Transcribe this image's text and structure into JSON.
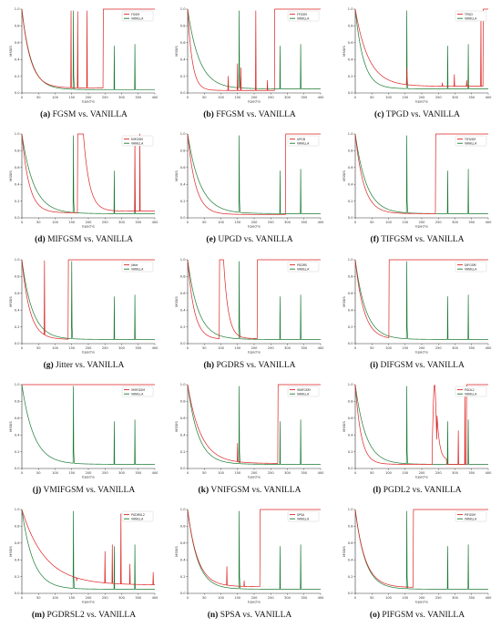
{
  "colors": {
    "attack": "#dd2222",
    "vanilla": "#1a7a33",
    "axis": "#333333"
  },
  "axes": {
    "xlabel": "Epochs",
    "ylabel": "MSSIS",
    "xlim": [
      0,
      400
    ],
    "ylim": [
      0,
      1.0
    ],
    "xticks": [
      "0",
      "50",
      "100",
      "150",
      "200",
      "250",
      "300",
      "350",
      "400"
    ],
    "yticks": [
      "0.0",
      "0.2",
      "0.4",
      "0.6",
      "0.8",
      "1.0"
    ]
  },
  "chart_data": [
    {
      "type": "line",
      "caption_letter": "(a)",
      "caption_text": "FGSM vs. VANILLA",
      "series": [
        {
          "name": "FGSM",
          "color": "#dd2222",
          "kind": "decay",
          "tau": 26,
          "floor": 0.06,
          "spikes": [
            [
              148,
              0.98
            ],
            [
              168,
              0.97
            ],
            [
              196,
              0.98
            ]
          ],
          "switch_at": 245
        },
        {
          "name": "VANILLA",
          "color": "#1a7a33",
          "kind": "decay",
          "tau": 28,
          "floor": 0.04,
          "spikes": [
            [
              155,
              0.98
            ],
            [
              278,
              0.56
            ],
            [
              340,
              0.58
            ]
          ]
        }
      ]
    },
    {
      "type": "line",
      "caption_letter": "(b)",
      "caption_text": "FFGSM vs. VANILLA",
      "series": [
        {
          "name": "FFGSM",
          "color": "#dd2222",
          "kind": "decay",
          "tau": 14,
          "floor": 0.03,
          "spikes": [
            [
              122,
              0.2
            ],
            [
              150,
              0.35
            ],
            [
              160,
              0.3
            ],
            [
              205,
              0.98
            ],
            [
              240,
              0.15
            ]
          ],
          "switch_at": 262
        },
        {
          "name": "VANILLA",
          "color": "#1a7a33",
          "kind": "decay",
          "tau": 35,
          "floor": 0.05,
          "spikes": [
            [
              155,
              0.98
            ],
            [
              278,
              0.56
            ],
            [
              340,
              0.58
            ]
          ]
        }
      ]
    },
    {
      "type": "line",
      "caption_letter": "(c)",
      "caption_text": "TPGD vs. VANILLA",
      "series": [
        {
          "name": "TPGD",
          "color": "#dd2222",
          "kind": "decay",
          "tau": 40,
          "floor": 0.08,
          "spikes": [
            [
              155,
              0.3
            ],
            [
              262,
              0.12
            ],
            [
              298,
              0.22
            ],
            [
              335,
              0.15
            ],
            [
              378,
              0.95
            ]
          ],
          "switch_at": 385
        },
        {
          "name": "VANILLA",
          "color": "#1a7a33",
          "kind": "decay",
          "tau": 25,
          "floor": 0.05,
          "spikes": [
            [
              155,
              0.98
            ],
            [
              278,
              0.56
            ],
            [
              340,
              0.58
            ]
          ]
        }
      ]
    },
    {
      "type": "line",
      "caption_letter": "(d)",
      "caption_text": "MIFGSM vs. VANILLA",
      "series": [
        {
          "name": "MIFGSM",
          "color": "#dd2222",
          "kind": "mifgsm"
        },
        {
          "name": "VANILLA",
          "color": "#1a7a33",
          "kind": "decay",
          "tau": 36,
          "floor": 0.05,
          "spikes": [
            [
              155,
              0.98
            ],
            [
              278,
              0.56
            ],
            [
              340,
              0.58
            ]
          ]
        }
      ]
    },
    {
      "type": "line",
      "caption_letter": "(e)",
      "caption_text": "UPGD vs. VANILLA",
      "series": [
        {
          "name": "UPGD",
          "color": "#dd2222",
          "kind": "decay",
          "tau": 24,
          "floor": 0.04,
          "spikes": [],
          "switch_at": 295
        },
        {
          "name": "VANILLA",
          "color": "#1a7a33",
          "kind": "decay",
          "tau": 38,
          "floor": 0.05,
          "spikes": [
            [
              155,
              0.98
            ],
            [
              278,
              0.56
            ],
            [
              340,
              0.58
            ]
          ]
        }
      ]
    },
    {
      "type": "line",
      "caption_letter": "(f)",
      "caption_text": "TIFGSM vs. VANILLA",
      "series": [
        {
          "name": "TIFGSM",
          "color": "#dd2222",
          "kind": "decay",
          "tau": 26,
          "floor": 0.05,
          "spikes": [],
          "switch_at": 242
        },
        {
          "name": "VANILLA",
          "color": "#1a7a33",
          "kind": "decay",
          "tau": 34,
          "floor": 0.05,
          "spikes": [
            [
              155,
              0.98
            ],
            [
              278,
              0.56
            ],
            [
              340,
              0.58
            ]
          ]
        }
      ]
    },
    {
      "type": "line",
      "caption_letter": "(g)",
      "caption_text": "Jitter vs. VANILLA",
      "series": [
        {
          "name": "Jitter",
          "color": "#dd2222",
          "kind": "decay",
          "tau": 24,
          "floor": 0.05,
          "spikes": [
            [
              68,
              0.99
            ]
          ],
          "switch_at": 140
        },
        {
          "name": "VANILLA",
          "color": "#1a7a33",
          "kind": "decay",
          "tau": 32,
          "floor": 0.05,
          "spikes": [
            [
              150,
              0.98
            ],
            [
              278,
              0.56
            ],
            [
              340,
              0.58
            ]
          ]
        }
      ]
    },
    {
      "type": "line",
      "caption_letter": "(h)",
      "caption_text": "PGDRS vs. VANILLA",
      "series": [
        {
          "name": "PGDRS",
          "color": "#dd2222",
          "kind": "pgdrs"
        },
        {
          "name": "VANILLA",
          "color": "#1a7a33",
          "kind": "decay",
          "tau": 32,
          "floor": 0.05,
          "spikes": [
            [
              155,
              0.98
            ],
            [
              278,
              0.56
            ],
            [
              340,
              0.58
            ]
          ]
        }
      ]
    },
    {
      "type": "line",
      "caption_letter": "(i)",
      "caption_text": "DIFGSM vs. VANILLA",
      "series": [
        {
          "name": "DIFGSM",
          "color": "#dd2222",
          "kind": "decay",
          "tau": 26,
          "floor": 0.05,
          "spikes": [],
          "switch_at": 102
        },
        {
          "name": "VANILLA",
          "color": "#1a7a33",
          "kind": "decay",
          "tau": 32,
          "floor": 0.05,
          "spikes": [
            [
              155,
              0.98
            ],
            [
              278,
              0.56
            ],
            [
              340,
              0.58
            ]
          ]
        }
      ]
    },
    {
      "type": "line",
      "caption_letter": "(j)",
      "caption_text": "VMIFGSM vs. VANILLA",
      "series": [
        {
          "name": "VMIFGSM",
          "color": "#dd2222",
          "kind": "flat",
          "value": 1.0
        },
        {
          "name": "VANILLA",
          "color": "#1a7a33",
          "kind": "decay",
          "tau": 36,
          "floor": 0.05,
          "spikes": [
            [
              155,
              0.98
            ],
            [
              278,
              0.56
            ],
            [
              340,
              0.58
            ]
          ]
        }
      ]
    },
    {
      "type": "line",
      "caption_letter": "(k)",
      "caption_text": "VNIFGSM vs. VANILLA",
      "series": [
        {
          "name": "VNIFGSM",
          "color": "#dd2222",
          "kind": "decay",
          "tau": 40,
          "floor": 0.06,
          "spikes": [
            [
              150,
              0.3
            ]
          ],
          "switch_at": 272
        },
        {
          "name": "VANILLA",
          "color": "#1a7a33",
          "kind": "decay",
          "tau": 32,
          "floor": 0.05,
          "spikes": [
            [
              155,
              0.98
            ],
            [
              278,
              0.56
            ],
            [
              340,
              0.58
            ]
          ]
        }
      ]
    },
    {
      "type": "line",
      "caption_letter": "(l)",
      "caption_text": "PGDL2 vs. VANILLA",
      "series": [
        {
          "name": "PGDL2",
          "color": "#dd2222",
          "kind": "pgdl2"
        },
        {
          "name": "VANILLA",
          "color": "#1a7a33",
          "kind": "decay",
          "tau": 32,
          "floor": 0.05,
          "spikes": [
            [
              155,
              0.98
            ],
            [
              278,
              0.56
            ],
            [
              340,
              0.58
            ]
          ]
        }
      ]
    },
    {
      "type": "line",
      "caption_letter": "(m)",
      "caption_text": "PGDRSL2 vs. VANILLA",
      "series": [
        {
          "name": "PGDRSL2",
          "color": "#dd2222",
          "kind": "decay",
          "tau": 70,
          "floor": 0.1,
          "spikes": [
            [
              165,
              0.15
            ],
            [
              250,
              0.5
            ],
            [
              272,
              0.58
            ],
            [
              298,
              0.95
            ],
            [
              325,
              0.35
            ],
            [
              395,
              0.25
            ]
          ]
        },
        {
          "name": "VANILLA",
          "color": "#1a7a33",
          "kind": "decay",
          "tau": 34,
          "floor": 0.05,
          "spikes": [
            [
              155,
              0.98
            ],
            [
              278,
              0.56
            ],
            [
              340,
              0.58
            ]
          ]
        }
      ]
    },
    {
      "type": "line",
      "caption_letter": "(n)",
      "caption_text": "SPSA vs. VANILLA",
      "series": [
        {
          "name": "SPSA",
          "color": "#dd2222",
          "kind": "decay",
          "tau": 30,
          "floor": 0.08,
          "spikes": [
            [
              118,
              0.32
            ],
            [
              170,
              0.15
            ]
          ],
          "switch_at": 218
        },
        {
          "name": "VANILLA",
          "color": "#1a7a33",
          "kind": "decay",
          "tau": 30,
          "floor": 0.05,
          "spikes": [
            [
              155,
              0.98
            ],
            [
              278,
              0.56
            ],
            [
              340,
              0.58
            ]
          ]
        }
      ]
    },
    {
      "type": "line",
      "caption_letter": "(o)",
      "caption_text": "PIFGSM vs. VANILLA",
      "series": [
        {
          "name": "PIFGSM",
          "color": "#dd2222",
          "kind": "decay",
          "tau": 30,
          "floor": 0.07,
          "spikes": [],
          "switch_at": 175
        },
        {
          "name": "VANILLA",
          "color": "#1a7a33",
          "kind": "decay",
          "tau": 30,
          "floor": 0.05,
          "spikes": [
            [
              155,
              0.98
            ],
            [
              278,
              0.56
            ],
            [
              340,
              0.58
            ]
          ]
        }
      ]
    }
  ]
}
